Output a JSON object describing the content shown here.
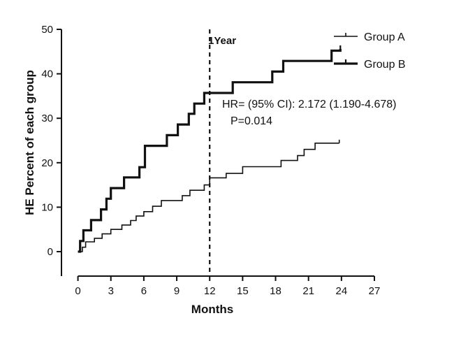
{
  "chart_data": {
    "type": "line",
    "title": "",
    "xlabel": "Months",
    "ylabel": "HE Percent of each group",
    "xlim": [
      -1.5,
      27
    ],
    "ylim": [
      -5.5,
      50
    ],
    "xticks": [
      0,
      3,
      6,
      9,
      12,
      15,
      18,
      21,
      24,
      27
    ],
    "yticks": [
      0,
      10,
      20,
      30,
      40,
      50
    ],
    "grid": false,
    "legend_position": "top-right",
    "colors": {
      "axis": "#111111",
      "group_a": "#111111",
      "group_b": "#111111"
    },
    "series": [
      {
        "name": "Group A",
        "style": "thin-step",
        "points": [
          [
            0,
            0
          ],
          [
            0.4,
            0
          ],
          [
            0.4,
            1.0
          ],
          [
            0.7,
            1.0
          ],
          [
            0.7,
            2.2
          ],
          [
            1.5,
            2.2
          ],
          [
            1.5,
            3.0
          ],
          [
            2.2,
            3.0
          ],
          [
            2.2,
            4.0
          ],
          [
            3.0,
            4.0
          ],
          [
            3.0,
            5.0
          ],
          [
            4.0,
            5.0
          ],
          [
            4.0,
            6.0
          ],
          [
            4.8,
            6.0
          ],
          [
            4.8,
            7.0
          ],
          [
            5.3,
            7.0
          ],
          [
            5.3,
            8.0
          ],
          [
            6.0,
            8.0
          ],
          [
            6.0,
            9.0
          ],
          [
            6.8,
            9.0
          ],
          [
            6.8,
            10.2
          ],
          [
            7.6,
            10.2
          ],
          [
            7.6,
            11.5
          ],
          [
            9.5,
            11.5
          ],
          [
            9.5,
            12.6
          ],
          [
            10.2,
            12.6
          ],
          [
            10.2,
            13.8
          ],
          [
            11.5,
            13.8
          ],
          [
            11.5,
            15.0
          ],
          [
            12.0,
            15.0
          ],
          [
            12.0,
            16.6
          ],
          [
            13.5,
            16.6
          ],
          [
            13.5,
            17.6
          ],
          [
            15.0,
            17.6
          ],
          [
            15.0,
            19.1
          ],
          [
            18.5,
            19.1
          ],
          [
            18.5,
            20.5
          ],
          [
            20.0,
            20.5
          ],
          [
            20.0,
            21.6
          ],
          [
            20.6,
            21.6
          ],
          [
            20.6,
            23.0
          ],
          [
            21.6,
            23.0
          ],
          [
            21.6,
            24.4
          ],
          [
            23.8,
            24.4
          ]
        ]
      },
      {
        "name": "Group B",
        "style": "thick-step",
        "points": [
          [
            0,
            0
          ],
          [
            0.2,
            0
          ],
          [
            0.2,
            2.4
          ],
          [
            0.5,
            2.4
          ],
          [
            0.5,
            4.8
          ],
          [
            1.2,
            4.8
          ],
          [
            1.2,
            7.1
          ],
          [
            2.1,
            7.1
          ],
          [
            2.1,
            9.5
          ],
          [
            2.6,
            9.5
          ],
          [
            2.6,
            11.9
          ],
          [
            3.0,
            11.9
          ],
          [
            3.0,
            14.3
          ],
          [
            4.2,
            14.3
          ],
          [
            4.2,
            16.7
          ],
          [
            5.6,
            16.7
          ],
          [
            5.6,
            19.0
          ],
          [
            6.1,
            19.0
          ],
          [
            6.1,
            23.8
          ],
          [
            8.1,
            23.8
          ],
          [
            8.1,
            26.2
          ],
          [
            9.1,
            26.2
          ],
          [
            9.1,
            28.6
          ],
          [
            10.1,
            28.6
          ],
          [
            10.1,
            31.0
          ],
          [
            10.6,
            31.0
          ],
          [
            10.6,
            33.3
          ],
          [
            11.5,
            33.3
          ],
          [
            11.5,
            35.7
          ],
          [
            14.1,
            35.7
          ],
          [
            14.1,
            38.1
          ],
          [
            17.7,
            38.1
          ],
          [
            17.7,
            40.5
          ],
          [
            18.7,
            40.5
          ],
          [
            18.7,
            42.9
          ],
          [
            23.1,
            42.9
          ],
          [
            23.1,
            45.2
          ],
          [
            23.9,
            45.2
          ],
          [
            23.9,
            45.6
          ]
        ]
      }
    ],
    "reference_line": {
      "x": 12,
      "style": "dashed",
      "label": "1Year"
    },
    "annotations": [
      "HR= (95% CI): 2.172 (1.190-4.678)",
      "P=0.014"
    ]
  }
}
